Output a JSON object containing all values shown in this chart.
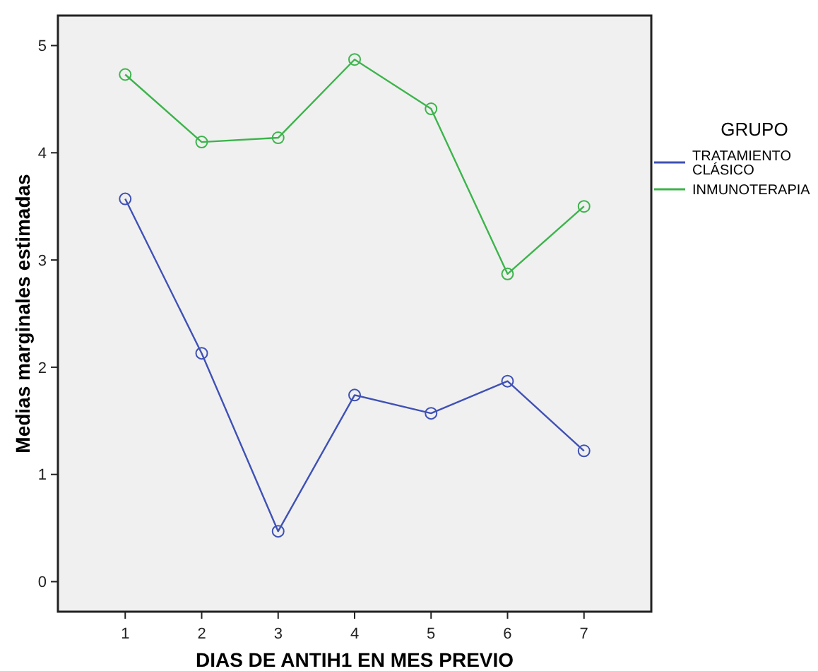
{
  "chart_data": {
    "type": "line",
    "xlabel": "DIAS DE ANTIH1 EN MES PREVIO",
    "ylabel": "Medias marginales estimadas",
    "legend_title": "GRUPO",
    "categories": [
      "1",
      "2",
      "3",
      "4",
      "5",
      "6",
      "7"
    ],
    "series": [
      {
        "name": "TRATAMIENTO CLÁSICO",
        "color": "#3f51b5",
        "values": [
          3.57,
          2.13,
          0.47,
          1.74,
          1.57,
          1.87,
          1.22
        ]
      },
      {
        "name": "INMUNOTERAPIA",
        "color": "#3cb44b",
        "values": [
          4.73,
          4.1,
          4.14,
          4.87,
          4.41,
          2.87,
          3.5
        ]
      }
    ],
    "ylim": [
      -0.28,
      5.28
    ],
    "yticks": [
      0,
      1,
      2,
      3,
      4,
      5
    ],
    "grid": false,
    "legend": "right",
    "marker": "circle",
    "line_style": "solid"
  }
}
